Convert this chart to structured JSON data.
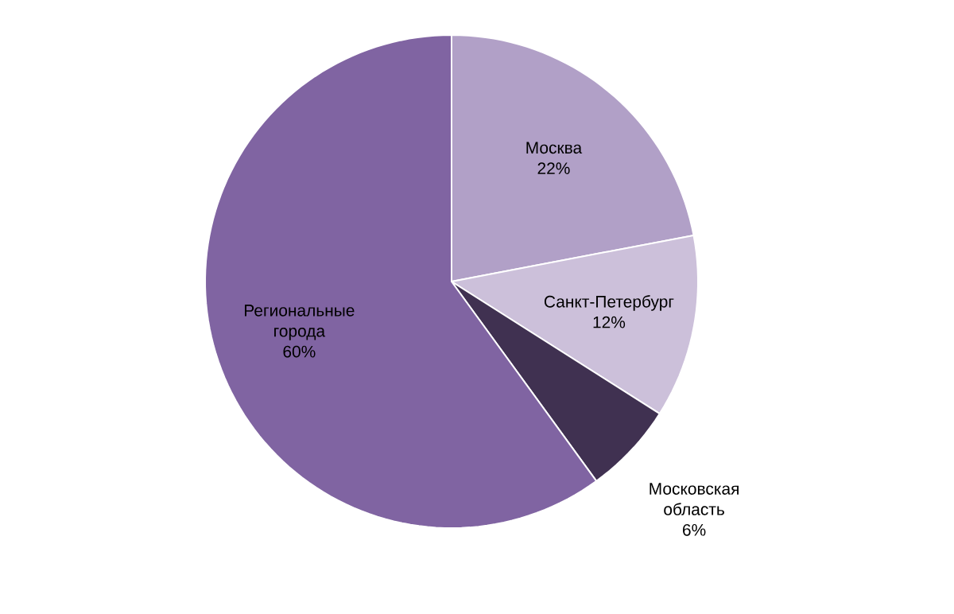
{
  "chart_data": {
    "type": "pie",
    "categories": [
      "Москва",
      "Санкт-Петербург",
      "Московская область",
      "Региональные города"
    ],
    "values": [
      22,
      12,
      6,
      60
    ],
    "colors": [
      "#b1a0c7",
      "#ccc0da",
      "#403151",
      "#8064a2"
    ],
    "value_labels": [
      "22%",
      "12%",
      "6%",
      "60%"
    ]
  }
}
